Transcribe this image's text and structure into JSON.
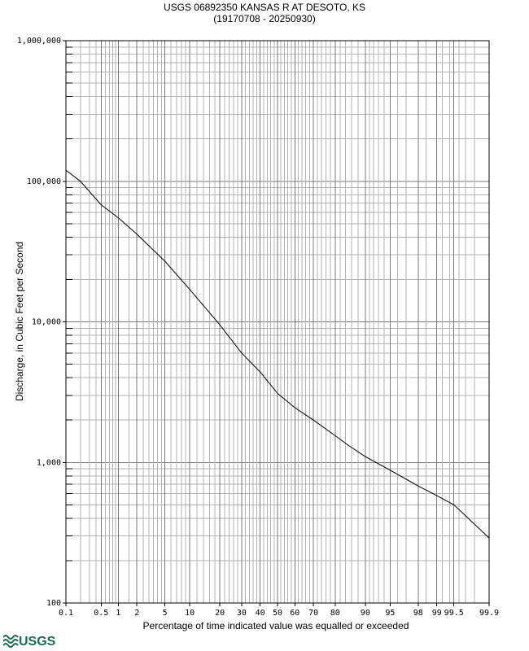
{
  "chart_data": {
    "type": "line",
    "title": "USGS 06892350 KANSAS R AT DESOTO, KS",
    "subtitle": "(19170708 - 20250930)",
    "xlabel": "Percentage of time indicated value was equalled or exceeded",
    "ylabel": "Discharge, in Cubic Feet per Second",
    "x_scale": "probability",
    "y_scale": "log",
    "xlim": [
      0.1,
      99.9
    ],
    "ylim": [
      100,
      1000000
    ],
    "grid": true,
    "x_ticks": [
      0.1,
      0.5,
      1,
      2,
      5,
      10,
      20,
      30,
      40,
      50,
      60,
      70,
      80,
      90,
      95,
      98,
      99,
      99.5,
      99.9
    ],
    "x_tick_labels": [
      "0.1",
      "0.5",
      "1",
      "2",
      "5",
      "10",
      "20",
      "30",
      "40",
      "50",
      "60",
      "70",
      "80",
      "90",
      "95",
      "98",
      "99",
      "99.5",
      "99.9"
    ],
    "y_ticks": [
      100,
      1000,
      10000,
      100000,
      1000000
    ],
    "y_tick_labels": [
      "100",
      "1,000",
      "10,000",
      "100,000",
      "1,000,000"
    ],
    "series": [
      {
        "x": [
          0.1,
          0.2,
          0.5,
          1,
          2,
          5,
          10,
          20,
          30,
          40,
          50,
          60,
          70,
          80,
          85,
          90,
          95,
          98,
          99,
          99.5,
          99.9
        ],
        "y": [
          120000,
          100000,
          68000,
          55000,
          42000,
          27000,
          17000,
          9500,
          6000,
          4400,
          3100,
          2450,
          2000,
          1550,
          1320,
          1100,
          880,
          680,
          580,
          500,
          290
        ]
      }
    ]
  },
  "footer": {
    "logo_text": "USGS",
    "logo_icon": "usgs-wave-icon"
  }
}
